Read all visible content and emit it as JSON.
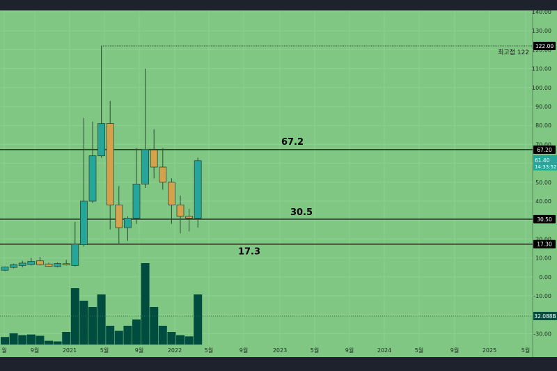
{
  "chart_data": {
    "type": "candlestick",
    "y_axis_ticks": [
      "140.00",
      "130.00",
      "120.00",
      "110.00",
      "100.00",
      "90.00",
      "80.00",
      "70.00",
      "60.00",
      "50.00",
      "40.00",
      "30.00",
      "20.00",
      "10.00",
      "0.00",
      "-10.00",
      "-20.00",
      "-30.00"
    ],
    "x_axis_ticks": [
      "월",
      "9월",
      "2021",
      "5월",
      "9월",
      "2022",
      "5월",
      "9월",
      "2023",
      "5월",
      "9월",
      "2024",
      "5월",
      "9월",
      "2025",
      "5월"
    ],
    "candles": [
      {
        "o": 3.5,
        "h": 5.5,
        "l": 3,
        "c": 5.2
      },
      {
        "o": 5,
        "h": 7,
        "l": 4.5,
        "c": 6.5
      },
      {
        "o": 6,
        "h": 8.5,
        "l": 5,
        "c": 7.3
      },
      {
        "o": 6.5,
        "h": 10,
        "l": 6,
        "c": 8.2
      },
      {
        "o": 8.5,
        "h": 10.5,
        "l": 6,
        "c": 6.5
      },
      {
        "o": 6.8,
        "h": 7.5,
        "l": 5.5,
        "c": 5.6
      },
      {
        "o": 5.5,
        "h": 7.6,
        "l": 5,
        "c": 7.1
      },
      {
        "o": 7,
        "h": 9,
        "l": 6,
        "c": 6.3
      },
      {
        "o": 6,
        "h": 29,
        "l": 5.5,
        "c": 17.3
      },
      {
        "o": 17,
        "h": 84,
        "l": 16,
        "c": 40
      },
      {
        "o": 40,
        "h": 82,
        "l": 39,
        "c": 64
      },
      {
        "o": 64,
        "h": 122,
        "l": 63,
        "c": 81
      },
      {
        "o": 81,
        "h": 93,
        "l": 25,
        "c": 38
      },
      {
        "o": 38,
        "h": 48,
        "l": 17,
        "c": 26
      },
      {
        "o": 26,
        "h": 32,
        "l": 19,
        "c": 31
      },
      {
        "o": 31,
        "h": 68,
        "l": 28,
        "c": 49
      },
      {
        "o": 49,
        "h": 110,
        "l": 47,
        "c": 67.2
      },
      {
        "o": 67,
        "h": 78,
        "l": 52,
        "c": 58
      },
      {
        "o": 58,
        "h": 68,
        "l": 46,
        "c": 50
      },
      {
        "o": 50,
        "h": 52,
        "l": 28,
        "c": 38
      },
      {
        "o": 38,
        "h": 43,
        "l": 23,
        "c": 32
      },
      {
        "o": 32,
        "h": 36,
        "l": 24,
        "c": 31
      },
      {
        "o": 31,
        "h": 63,
        "l": 26,
        "c": 61.4
      }
    ],
    "volume_rel": [
      0.12,
      0.18,
      0.15,
      0.16,
      0.14,
      0.06,
      0.05,
      0.2,
      0.9,
      0.7,
      0.6,
      0.8,
      0.3,
      0.22,
      0.3,
      0.4,
      1.3,
      0.6,
      0.3,
      0.2,
      0.15,
      0.13,
      0.8
    ],
    "horizontal_levels": [
      {
        "value": 67.2,
        "label": "67.2",
        "axis_label": "67.20"
      },
      {
        "value": 30.5,
        "label": "30.5",
        "axis_label": "30.50"
      },
      {
        "value": 17.3,
        "label": "17.3",
        "axis_label": "17.30"
      }
    ],
    "high_marker": {
      "value": 122,
      "label": "최고점 122",
      "axis_label": "122.00"
    },
    "last_price": {
      "value": 61.4,
      "label": "61.40",
      "countdown": "14:33:52"
    },
    "volume_marker": {
      "label": "32.088B"
    },
    "colors": {
      "bg": "#81c784",
      "up": "#26a69a",
      "down": "#d4a24c",
      "volume": "#004d40",
      "axis_text": "#1c2a22",
      "level_line": "#000000"
    }
  }
}
